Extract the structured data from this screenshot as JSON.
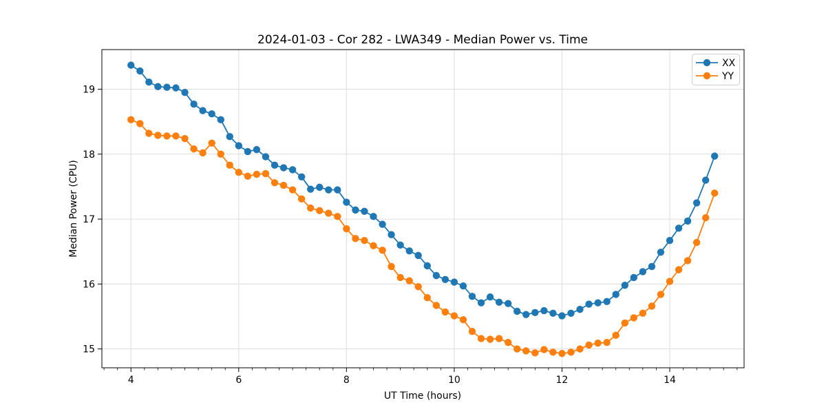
{
  "chart_data": {
    "type": "line",
    "title": "2024-01-03 - Cor 282 - LWA349 - Median Power vs. Time",
    "xlabel": "UT Time (hours)",
    "ylabel": "Median Power (CPU)",
    "xlim": [
      3.46,
      15.38
    ],
    "ylim": [
      14.71,
      19.61
    ],
    "x_ticks": [
      4,
      6,
      8,
      10,
      12,
      14
    ],
    "y_ticks": [
      15,
      16,
      17,
      18,
      19
    ],
    "x_minor_tick_step": 0.25,
    "grid": true,
    "grid_color": "#dcdcdc",
    "legend_position": "upper right",
    "x": [
      4.0,
      4.167,
      4.333,
      4.5,
      4.667,
      4.833,
      5.0,
      5.167,
      5.333,
      5.5,
      5.667,
      5.833,
      6.0,
      6.167,
      6.333,
      6.5,
      6.667,
      6.833,
      7.0,
      7.167,
      7.333,
      7.5,
      7.667,
      7.833,
      8.0,
      8.167,
      8.333,
      8.5,
      8.667,
      8.833,
      9.0,
      9.167,
      9.333,
      9.5,
      9.667,
      9.833,
      10.0,
      10.167,
      10.333,
      10.5,
      10.667,
      10.833,
      11.0,
      11.167,
      11.333,
      11.5,
      11.667,
      11.833,
      12.0,
      12.167,
      12.333,
      12.5,
      12.667,
      12.833,
      13.0,
      13.167,
      13.333,
      13.5,
      13.667,
      13.833,
      14.0,
      14.167,
      14.333,
      14.5,
      14.667,
      14.833
    ],
    "series": [
      {
        "name": "XX",
        "color": "#1f77b4",
        "marker": "circle",
        "values": [
          19.37,
          19.28,
          19.11,
          19.04,
          19.03,
          19.02,
          18.95,
          18.77,
          18.67,
          18.62,
          18.53,
          18.27,
          18.13,
          18.04,
          18.07,
          17.96,
          17.83,
          17.79,
          17.76,
          17.65,
          17.46,
          17.49,
          17.45,
          17.45,
          17.26,
          17.14,
          17.12,
          17.04,
          16.92,
          16.76,
          16.6,
          16.51,
          16.44,
          16.28,
          16.13,
          16.07,
          16.03,
          15.97,
          15.81,
          15.71,
          15.8,
          15.72,
          15.7,
          15.58,
          15.53,
          15.56,
          15.59,
          15.55,
          15.51,
          15.55,
          15.61,
          15.69,
          15.71,
          15.73,
          15.84,
          15.98,
          16.1,
          16.19,
          16.27,
          16.49,
          16.67,
          16.86,
          16.97,
          17.25,
          17.6,
          17.97
        ]
      },
      {
        "name": "YY",
        "color": "#ff7f0e",
        "marker": "circle",
        "values": [
          18.53,
          18.47,
          18.32,
          18.29,
          18.28,
          18.28,
          18.24,
          18.08,
          18.02,
          18.17,
          18.0,
          17.83,
          17.72,
          17.66,
          17.69,
          17.7,
          17.56,
          17.52,
          17.45,
          17.31,
          17.17,
          17.13,
          17.09,
          17.04,
          16.85,
          16.7,
          16.67,
          16.59,
          16.52,
          16.27,
          16.1,
          16.05,
          15.96,
          15.79,
          15.67,
          15.57,
          15.51,
          15.45,
          15.27,
          15.16,
          15.15,
          15.16,
          15.1,
          15.0,
          14.97,
          14.94,
          14.99,
          14.95,
          14.93,
          14.95,
          15.0,
          15.06,
          15.09,
          15.1,
          15.21,
          15.4,
          15.48,
          15.55,
          15.66,
          15.84,
          16.04,
          16.22,
          16.36,
          16.64,
          17.02,
          17.4
        ]
      }
    ]
  }
}
